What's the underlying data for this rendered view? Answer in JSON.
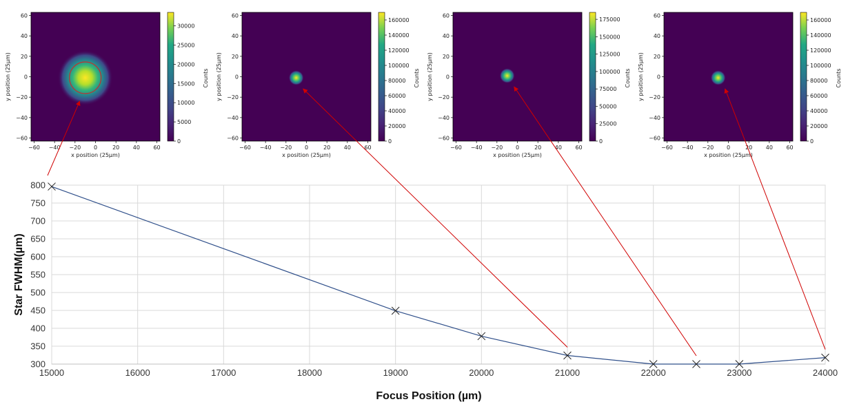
{
  "chart_data": [
    {
      "type": "line",
      "xlabel": "Focus Position (µm)",
      "ylabel": "Star FWHM(µm)",
      "xlim": [
        15000,
        24000
      ],
      "ylim": [
        300,
        800
      ],
      "xticks": [
        "15000",
        "16000",
        "17000",
        "18000",
        "19000",
        "20000",
        "21000",
        "22000",
        "23000",
        "24000"
      ],
      "yticks": [
        "300",
        "350",
        "400",
        "450",
        "500",
        "550",
        "600",
        "650",
        "700",
        "750",
        "800"
      ],
      "grid": true,
      "line_color": "#2f4f8a",
      "marker": "x",
      "series": [
        {
          "x": [
            15000,
            19000,
            20000,
            21000,
            22000,
            22500,
            23000,
            24000
          ],
          "y": [
            796,
            449,
            378,
            324,
            300,
            300,
            300,
            318
          ]
        }
      ]
    },
    {
      "type": "heatmap",
      "xlabel": "x position (25µm)",
      "ylabel": "y position (25µm)",
      "colorbar_label": "Counts",
      "xticks": [
        "−60",
        "−40",
        "−20",
        "0",
        "20",
        "40",
        "60"
      ],
      "yticks": [
        "60",
        "40",
        "20",
        "0",
        "−20",
        "−40",
        "−60"
      ],
      "colorbar_ticks": [
        "0",
        "5000",
        "10000",
        "15000",
        "20000",
        "25000",
        "30000"
      ],
      "colorbar_max": 33500,
      "spot_center": [
        -10,
        -1
      ],
      "spot_size": "large",
      "ring_circle": true,
      "focus_position": 15000
    },
    {
      "type": "heatmap",
      "xlabel": "x position (25µm)",
      "ylabel": "y position (25µm)",
      "colorbar_label": "Counts",
      "xticks": [
        "−60",
        "−40",
        "−20",
        "0",
        "20",
        "40",
        "60"
      ],
      "yticks": [
        "60",
        "40",
        "20",
        "0",
        "−20",
        "−40",
        "−60"
      ],
      "colorbar_ticks": [
        "0",
        "20000",
        "40000",
        "60000",
        "80000",
        "100000",
        "120000",
        "140000",
        "160000"
      ],
      "colorbar_max": 170000,
      "spot_center": [
        -10,
        -1
      ],
      "spot_size": "small",
      "ring_circle": false,
      "focus_position": 21000
    },
    {
      "type": "heatmap",
      "xlabel": "x position (25µm)",
      "ylabel": "y position (25µm)",
      "colorbar_label": "Counts",
      "xticks": [
        "−60",
        "−40",
        "−20",
        "0",
        "20",
        "40",
        "60"
      ],
      "yticks": [
        "60",
        "40",
        "20",
        "0",
        "−20",
        "−40",
        "−60"
      ],
      "colorbar_ticks": [
        "0",
        "25000",
        "50000",
        "75000",
        "100000",
        "125000",
        "150000",
        "175000"
      ],
      "colorbar_max": 185000,
      "spot_center": [
        -10,
        1
      ],
      "spot_size": "small",
      "ring_circle": false,
      "focus_position": 22500
    },
    {
      "type": "heatmap",
      "xlabel": "x position (25µm)",
      "ylabel": "y position (25µm)",
      "colorbar_label": "Counts",
      "xticks": [
        "−60",
        "−40",
        "−20",
        "0",
        "20",
        "40",
        "60"
      ],
      "yticks": [
        "60",
        "40",
        "20",
        "0",
        "−20",
        "−40",
        "−60"
      ],
      "colorbar_ticks": [
        "0",
        "20000",
        "40000",
        "60000",
        "80000",
        "100000",
        "120000",
        "140000",
        "160000"
      ],
      "colorbar_max": 170000,
      "spot_center": [
        -10,
        -1
      ],
      "spot_size": "small",
      "ring_circle": false,
      "focus_position": 24000
    }
  ],
  "arrow_color": "#d00000"
}
